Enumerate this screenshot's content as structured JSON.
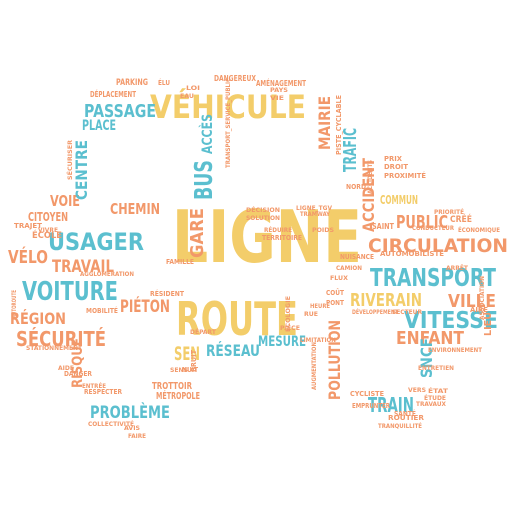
{
  "palette": {
    "yellow": "#f3cd6a",
    "blue": "#5bbfcf",
    "orange": "#f2986a",
    "background": "#ffffff"
  },
  "word_cloud": {
    "shape": "car-silhouette",
    "words": [
      {
        "text": "LIGNE",
        "color": "yellow"
      },
      {
        "text": "ROUTE",
        "color": "yellow"
      },
      {
        "text": "VÉHICULE",
        "color": "yellow"
      },
      {
        "text": "TRANSPORT",
        "color": "blue"
      },
      {
        "text": "CIRCULATION",
        "color": "orange"
      },
      {
        "text": "VOITURE",
        "color": "blue"
      },
      {
        "text": "USAGER",
        "color": "blue"
      },
      {
        "text": "SÉCURITÉ",
        "color": "orange"
      },
      {
        "text": "VITESSE",
        "color": "blue"
      },
      {
        "text": "RIVERAIN",
        "color": "yellow"
      },
      {
        "text": "ENFANT",
        "color": "orange"
      },
      {
        "text": "VILLE",
        "color": "orange"
      },
      {
        "text": "PUBLIC",
        "color": "orange"
      },
      {
        "text": "PASSAGE",
        "color": "blue"
      },
      {
        "text": "PLACE",
        "color": "blue"
      },
      {
        "text": "PROBLÈME",
        "color": "blue"
      },
      {
        "text": "TRAVAIL",
        "color": "orange"
      },
      {
        "text": "VÉLO",
        "color": "orange"
      },
      {
        "text": "CHEMIN",
        "color": "orange"
      },
      {
        "text": "PIÉTON",
        "color": "orange"
      },
      {
        "text": "RÉGION",
        "color": "orange"
      },
      {
        "text": "VOIE",
        "color": "orange"
      },
      {
        "text": "CENTRE",
        "color": "blue"
      },
      {
        "text": "CITOYEN",
        "color": "orange"
      },
      {
        "text": "GARE",
        "color": "orange"
      },
      {
        "text": "BUS",
        "color": "blue"
      },
      {
        "text": "ACCÈS",
        "color": "blue"
      },
      {
        "text": "TRAIN",
        "color": "blue"
      },
      {
        "text": "POLLUTION",
        "color": "orange"
      },
      {
        "text": "SNCF",
        "color": "blue"
      },
      {
        "text": "RÉSEAU",
        "color": "blue"
      },
      {
        "text": "MESURE",
        "color": "blue"
      },
      {
        "text": "SEN",
        "color": "yellow"
      },
      {
        "text": "ACCIDENT",
        "color": "orange"
      },
      {
        "text": "TRAFIC",
        "color": "blue"
      },
      {
        "text": "MAIRIE",
        "color": "orange"
      },
      {
        "text": "RISQUE",
        "color": "orange"
      },
      {
        "text": "TROTTOIR",
        "color": "orange"
      },
      {
        "text": "MÉTROPOLE",
        "color": "orange"
      },
      {
        "text": "LIEU",
        "color": "orange"
      },
      {
        "text": "CRÉÉ",
        "color": "orange"
      },
      {
        "text": "COMMUN",
        "color": "yellow"
      },
      {
        "text": "SAINT",
        "color": "orange"
      },
      {
        "text": "PARKING",
        "color": "orange"
      },
      {
        "text": "DANGEREUX",
        "color": "orange"
      },
      {
        "text": "AMÉNAGEMENT",
        "color": "orange"
      },
      {
        "text": "DÉPLACEMENT",
        "color": "orange"
      },
      {
        "text": "ÉLU",
        "color": "orange"
      },
      {
        "text": "AIRE",
        "color": "orange"
      },
      {
        "text": "COÛT",
        "color": "orange"
      },
      {
        "text": "PONT",
        "color": "orange"
      },
      {
        "text": "DANGER",
        "color": "orange"
      },
      {
        "text": "RESPECTER",
        "color": "orange"
      },
      {
        "text": "ÉCOLE",
        "color": "orange"
      },
      {
        "text": "TRAJET",
        "color": "orange"
      },
      {
        "text": "AUTOROUTE",
        "color": "orange"
      },
      {
        "text": "STATIONNEMENT",
        "color": "orange"
      },
      {
        "text": "ROUTIER",
        "color": "orange"
      },
      {
        "text": "SANTÉ",
        "color": "orange"
      },
      {
        "text": "ENVIRONNEMENT",
        "color": "orange"
      },
      {
        "text": "ASSOCIATION",
        "color": "orange"
      },
      {
        "text": "AUTOMOBILISTE",
        "color": "orange"
      },
      {
        "text": "NORD",
        "color": "orange"
      },
      {
        "text": "PROXIMITÉ",
        "color": "orange"
      },
      {
        "text": "DROIT",
        "color": "orange"
      },
      {
        "text": "PRIX",
        "color": "orange"
      },
      {
        "text": "PISTE_CYCLABLE",
        "color": "orange"
      },
      {
        "text": "TRANSPORT_SERVICE_PUBLIC",
        "color": "orange"
      },
      {
        "text": "NUISANCE",
        "color": "orange"
      },
      {
        "text": "TERRITOIRE",
        "color": "orange"
      },
      {
        "text": "MOBILITÉ",
        "color": "orange"
      },
      {
        "text": "FAMILLE",
        "color": "orange"
      },
      {
        "text": "RÉSIDENT",
        "color": "orange"
      },
      {
        "text": "BRUIT",
        "color": "orange"
      },
      {
        "text": "NUIT",
        "color": "orange"
      },
      {
        "text": "ENTRÉE",
        "color": "orange"
      },
      {
        "text": "ÉCOLOGIE",
        "color": "orange"
      },
      {
        "text": "EMPRUNTER",
        "color": "orange"
      },
      {
        "text": "ÉTAT",
        "color": "orange"
      },
      {
        "text": "CYCLISTE",
        "color": "orange"
      },
      {
        "text": "SECTEUR",
        "color": "orange"
      },
      {
        "text": "DÉVELOPPEMENT",
        "color": "orange"
      },
      {
        "text": "CONDUCTEUR",
        "color": "orange"
      },
      {
        "text": "ÉCONOMIQUE",
        "color": "orange"
      },
      {
        "text": "VIVRE",
        "color": "orange"
      },
      {
        "text": "COLLECTIVITÉ",
        "color": "orange"
      },
      {
        "text": "AGGLOMÉRATION",
        "color": "orange"
      },
      {
        "text": "SÉCURISER",
        "color": "orange"
      },
      {
        "text": "PIÈCE",
        "color": "orange"
      },
      {
        "text": "DÉPART",
        "color": "orange"
      },
      {
        "text": "VERS",
        "color": "orange"
      },
      {
        "text": "TRAVAUX",
        "color": "orange"
      },
      {
        "text": "AUGMENTATION",
        "color": "orange"
      },
      {
        "text": "ÉTUDE",
        "color": "orange"
      },
      {
        "text": "AIDE",
        "color": "orange"
      },
      {
        "text": "ARRÊT",
        "color": "orange"
      },
      {
        "text": "CAMION",
        "color": "orange"
      },
      {
        "text": "SENS",
        "color": "orange"
      },
      {
        "text": "ENTRETIEN",
        "color": "orange"
      },
      {
        "text": "FLUX",
        "color": "orange"
      },
      {
        "text": "POIDS",
        "color": "orange"
      },
      {
        "text": "PRIORITÉ",
        "color": "orange"
      },
      {
        "text": "TRAMWAY",
        "color": "orange"
      },
      {
        "text": "LIGNE_TGV",
        "color": "orange"
      },
      {
        "text": "EAU",
        "color": "orange"
      },
      {
        "text": "LOI",
        "color": "orange"
      },
      {
        "text": "VIE",
        "color": "orange"
      },
      {
        "text": "PAYS",
        "color": "orange"
      },
      {
        "text": "DÉCISION",
        "color": "orange"
      },
      {
        "text": "SOLUTION",
        "color": "orange"
      },
      {
        "text": "TRANQUILLITÉ",
        "color": "orange"
      },
      {
        "text": "AVIS",
        "color": "orange"
      },
      {
        "text": "FAIRE",
        "color": "orange"
      },
      {
        "text": "ACCIDENTS",
        "color": "orange"
      },
      {
        "text": "RÉDUIRE",
        "color": "orange"
      },
      {
        "text": "LIMITATION",
        "color": "orange"
      },
      {
        "text": "RUE",
        "color": "orange"
      },
      {
        "text": "HEURE",
        "color": "orange"
      }
    ]
  }
}
